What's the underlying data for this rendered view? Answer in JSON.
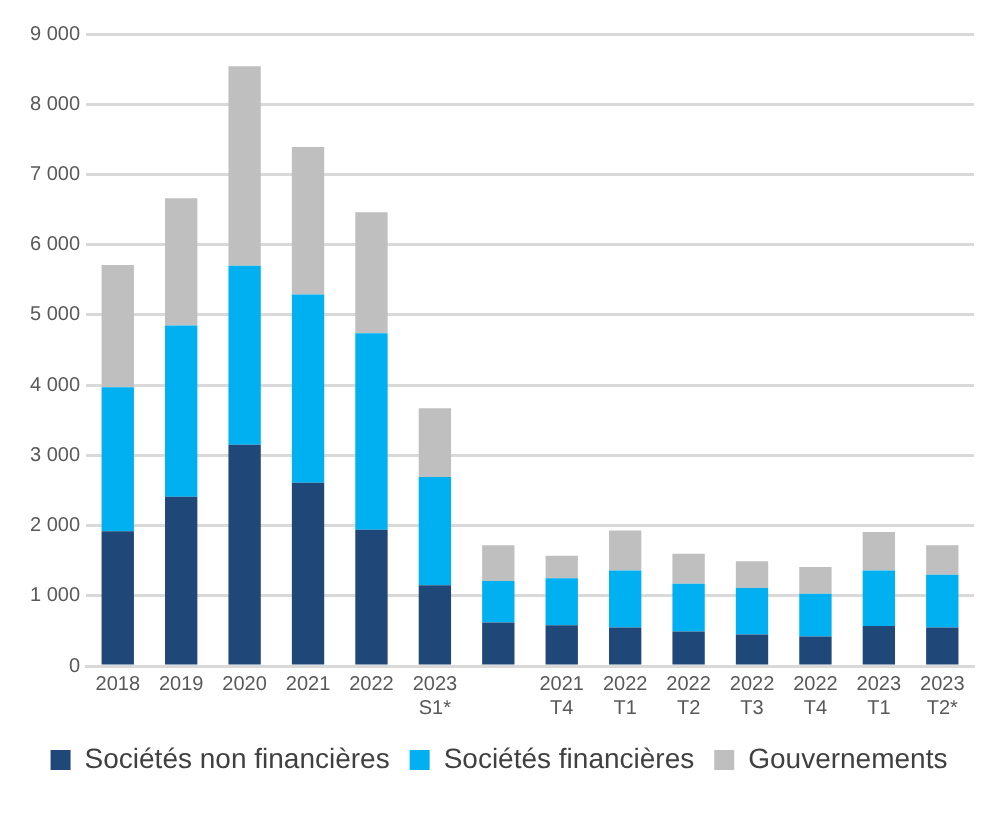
{
  "chart_data": {
    "type": "bar",
    "stacked": true,
    "categories": [
      "2018",
      "2019",
      "2020",
      "2021",
      "2022",
      "2023 S1*",
      null,
      "2021 T4",
      "2022 T1",
      "2022 T2",
      "2022 T3",
      "2022 T4",
      "2023 T1",
      "2023 T2*"
    ],
    "series": [
      {
        "name": "Sociétés non financières",
        "color": "#1f4778",
        "values": [
          1920,
          2410,
          3150,
          2610,
          1940,
          1150,
          620,
          580,
          550,
          490,
          450,
          420,
          570,
          550
        ]
      },
      {
        "name": "Sociétés financières",
        "color": "#00b0f0",
        "values": [
          2050,
          2440,
          2550,
          2680,
          2800,
          1540,
          590,
          670,
          810,
          680,
          660,
          610,
          790,
          750
        ]
      },
      {
        "name": "Gouvernements",
        "color": "#bfbfbf",
        "values": [
          1740,
          1810,
          2840,
          2100,
          1720,
          980,
          510,
          320,
          570,
          430,
          380,
          380,
          550,
          420
        ]
      }
    ],
    "ylim": [
      0,
      9000
    ],
    "yticks": [
      {
        "value": 0,
        "label": "0"
      },
      {
        "value": 1000,
        "label": "1 000"
      },
      {
        "value": 2000,
        "label": "2 000"
      },
      {
        "value": 3000,
        "label": "3 000"
      },
      {
        "value": 4000,
        "label": "4 000"
      },
      {
        "value": 5000,
        "label": "5 000"
      },
      {
        "value": 6000,
        "label": "6 000"
      },
      {
        "value": 7000,
        "label": "7 000"
      },
      {
        "value": 8000,
        "label": "8 000"
      },
      {
        "value": 9000,
        "label": "9 000"
      }
    ],
    "grid": "y",
    "legend": "bottom"
  }
}
